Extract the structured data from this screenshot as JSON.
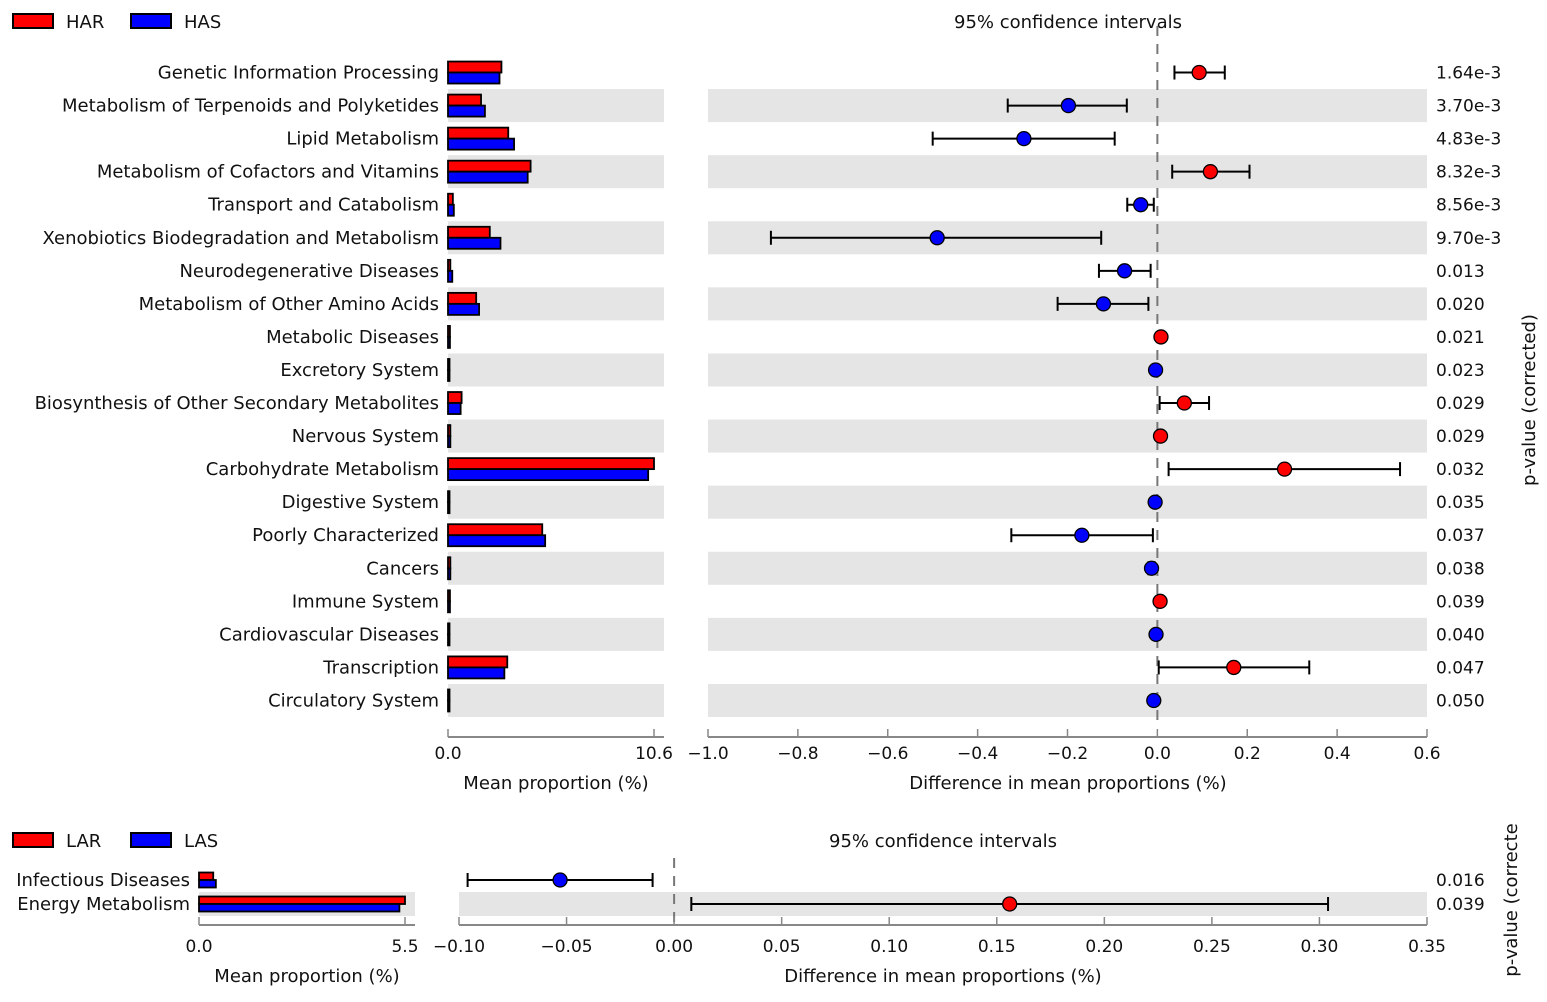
{
  "chart_data": [
    {
      "type": "extended-error-bar",
      "name": "HAR vs HAS",
      "legend": [
        {
          "label": "HAR",
          "color": "#ff0000"
        },
        {
          "label": "HAS",
          "color": "#0000ff"
        }
      ],
      "legend_placement": "top-left",
      "ci_title": "95% confidence intervals",
      "bar_xlabel": "Mean proportion (%)",
      "bar_xlim": [
        0.0,
        10.6
      ],
      "bar_ticks": [
        "0.0",
        "10.6"
      ],
      "ci_xlabel": "Difference in mean proportions (%)",
      "ci_xlim": [
        -1.0,
        0.6
      ],
      "ci_ticks": [
        "−1.0",
        "−0.8",
        "−0.6",
        "−0.4",
        "−0.2",
        "0.0",
        "0.2",
        "0.4",
        "0.6"
      ],
      "ci_tick_values": [
        -1.0,
        -0.8,
        -0.6,
        -0.4,
        -0.2,
        0.0,
        0.2,
        0.4,
        0.6
      ],
      "pvalue_label": "p-value (corrected)",
      "rows": [
        {
          "category": "Genetic Information Processing",
          "group1": 2.75,
          "group2": 2.65,
          "diff": 0.093,
          "ci_low": 0.038,
          "ci_high": 0.15,
          "p": "1.64e-3"
        },
        {
          "category": "Metabolism of Terpenoids and Polyketides",
          "group1": 1.7,
          "group2": 1.9,
          "diff": -0.198,
          "ci_low": -0.333,
          "ci_high": -0.068,
          "p": "3.70e-3"
        },
        {
          "category": "Lipid Metabolism",
          "group1": 3.1,
          "group2": 3.4,
          "diff": -0.297,
          "ci_low": -0.5,
          "ci_high": -0.095,
          "p": "4.83e-3"
        },
        {
          "category": "Metabolism of Cofactors and Vitamins",
          "group1": 4.25,
          "group2": 4.1,
          "diff": 0.118,
          "ci_low": 0.033,
          "ci_high": 0.205,
          "p": "8.32e-3"
        },
        {
          "category": "Transport and Catabolism",
          "group1": 0.25,
          "group2": 0.3,
          "diff": -0.037,
          "ci_low": -0.067,
          "ci_high": -0.008,
          "p": "8.56e-3"
        },
        {
          "category": "Xenobiotics Biodegradation and Metabolism",
          "group1": 2.15,
          "group2": 2.7,
          "diff": -0.49,
          "ci_low": -0.86,
          "ci_high": -0.125,
          "p": "9.70e-3"
        },
        {
          "category": "Neurodegenerative Diseases",
          "group1": 0.12,
          "group2": 0.22,
          "diff": -0.073,
          "ci_low": -0.13,
          "ci_high": -0.015,
          "p": "0.013"
        },
        {
          "category": "Metabolism of Other Amino Acids",
          "group1": 1.45,
          "group2": 1.6,
          "diff": -0.12,
          "ci_low": -0.222,
          "ci_high": -0.02,
          "p": "0.020"
        },
        {
          "category": "Metabolic Diseases",
          "group1": 0.1,
          "group2": 0.1,
          "diff": 0.008,
          "ci_low": 0.005,
          "ci_high": 0.012,
          "p": "0.021"
        },
        {
          "category": "Excretory System",
          "group1": 0.05,
          "group2": 0.05,
          "diff": -0.004,
          "ci_low": -0.006,
          "ci_high": -0.002,
          "p": "0.023"
        },
        {
          "category": "Biosynthesis of Other Secondary Metabolites",
          "group1": 0.7,
          "group2": 0.65,
          "diff": 0.06,
          "ci_low": 0.005,
          "ci_high": 0.115,
          "p": "0.029"
        },
        {
          "category": "Nervous System",
          "group1": 0.12,
          "group2": 0.12,
          "diff": 0.007,
          "ci_low": 0.004,
          "ci_high": 0.01,
          "p": "0.029"
        },
        {
          "category": "Carbohydrate Metabolism",
          "group1": 10.6,
          "group2": 10.3,
          "diff": 0.283,
          "ci_low": 0.025,
          "ci_high": 0.54,
          "p": "0.032"
        },
        {
          "category": "Digestive System",
          "group1": 0.05,
          "group2": 0.05,
          "diff": -0.005,
          "ci_low": -0.007,
          "ci_high": -0.003,
          "p": "0.035"
        },
        {
          "category": "Poorly Characterized",
          "group1": 4.85,
          "group2": 5.0,
          "diff": -0.168,
          "ci_low": -0.325,
          "ci_high": -0.01,
          "p": "0.037"
        },
        {
          "category": "Cancers",
          "group1": 0.12,
          "group2": 0.12,
          "diff": -0.013,
          "ci_low": -0.02,
          "ci_high": -0.006,
          "p": "0.038"
        },
        {
          "category": "Immune System",
          "group1": 0.1,
          "group2": 0.1,
          "diff": 0.006,
          "ci_low": 0.003,
          "ci_high": 0.009,
          "p": "0.039"
        },
        {
          "category": "Cardiovascular Diseases",
          "group1": 0.05,
          "group2": 0.05,
          "diff": -0.003,
          "ci_low": -0.005,
          "ci_high": -0.001,
          "p": "0.040"
        },
        {
          "category": "Transcription",
          "group1": 3.05,
          "group2": 2.9,
          "diff": 0.17,
          "ci_low": 0.003,
          "ci_high": 0.338,
          "p": "0.047"
        },
        {
          "category": "Circulatory System",
          "group1": 0.05,
          "group2": 0.05,
          "diff": -0.008,
          "ci_low": -0.01,
          "ci_high": -0.006,
          "p": "0.050"
        }
      ]
    },
    {
      "type": "extended-error-bar",
      "name": "LAR vs LAS",
      "legend": [
        {
          "label": "LAR",
          "color": "#ff0000"
        },
        {
          "label": "LAS",
          "color": "#0000ff"
        }
      ],
      "legend_placement": "top-left",
      "ci_title": "95% confidence intervals",
      "bar_xlabel": "Mean proportion (%)",
      "bar_xlim": [
        0.0,
        5.5
      ],
      "bar_ticks": [
        "0.0",
        "5.5"
      ],
      "ci_xlabel": "Difference in mean proportions (%)",
      "ci_xlim": [
        -0.1,
        0.35
      ],
      "ci_ticks": [
        "−0.10",
        "−0.05",
        "0.00",
        "0.05",
        "0.10",
        "0.15",
        "0.20",
        "0.25",
        "0.30",
        "0.35"
      ],
      "ci_tick_values": [
        -0.1,
        -0.05,
        0.0,
        0.05,
        0.1,
        0.15,
        0.2,
        0.25,
        0.3,
        0.35
      ],
      "pvalue_label": "p-value (correcte",
      "rows": [
        {
          "category": "Infectious Diseases",
          "group1": 0.38,
          "group2": 0.45,
          "diff": -0.053,
          "ci_low": -0.096,
          "ci_high": -0.01,
          "p": "0.016"
        },
        {
          "category": "Energy Metabolism",
          "group1": 5.5,
          "group2": 5.35,
          "diff": 0.156,
          "ci_low": 0.008,
          "ci_high": 0.304,
          "p": "0.039"
        }
      ]
    }
  ]
}
